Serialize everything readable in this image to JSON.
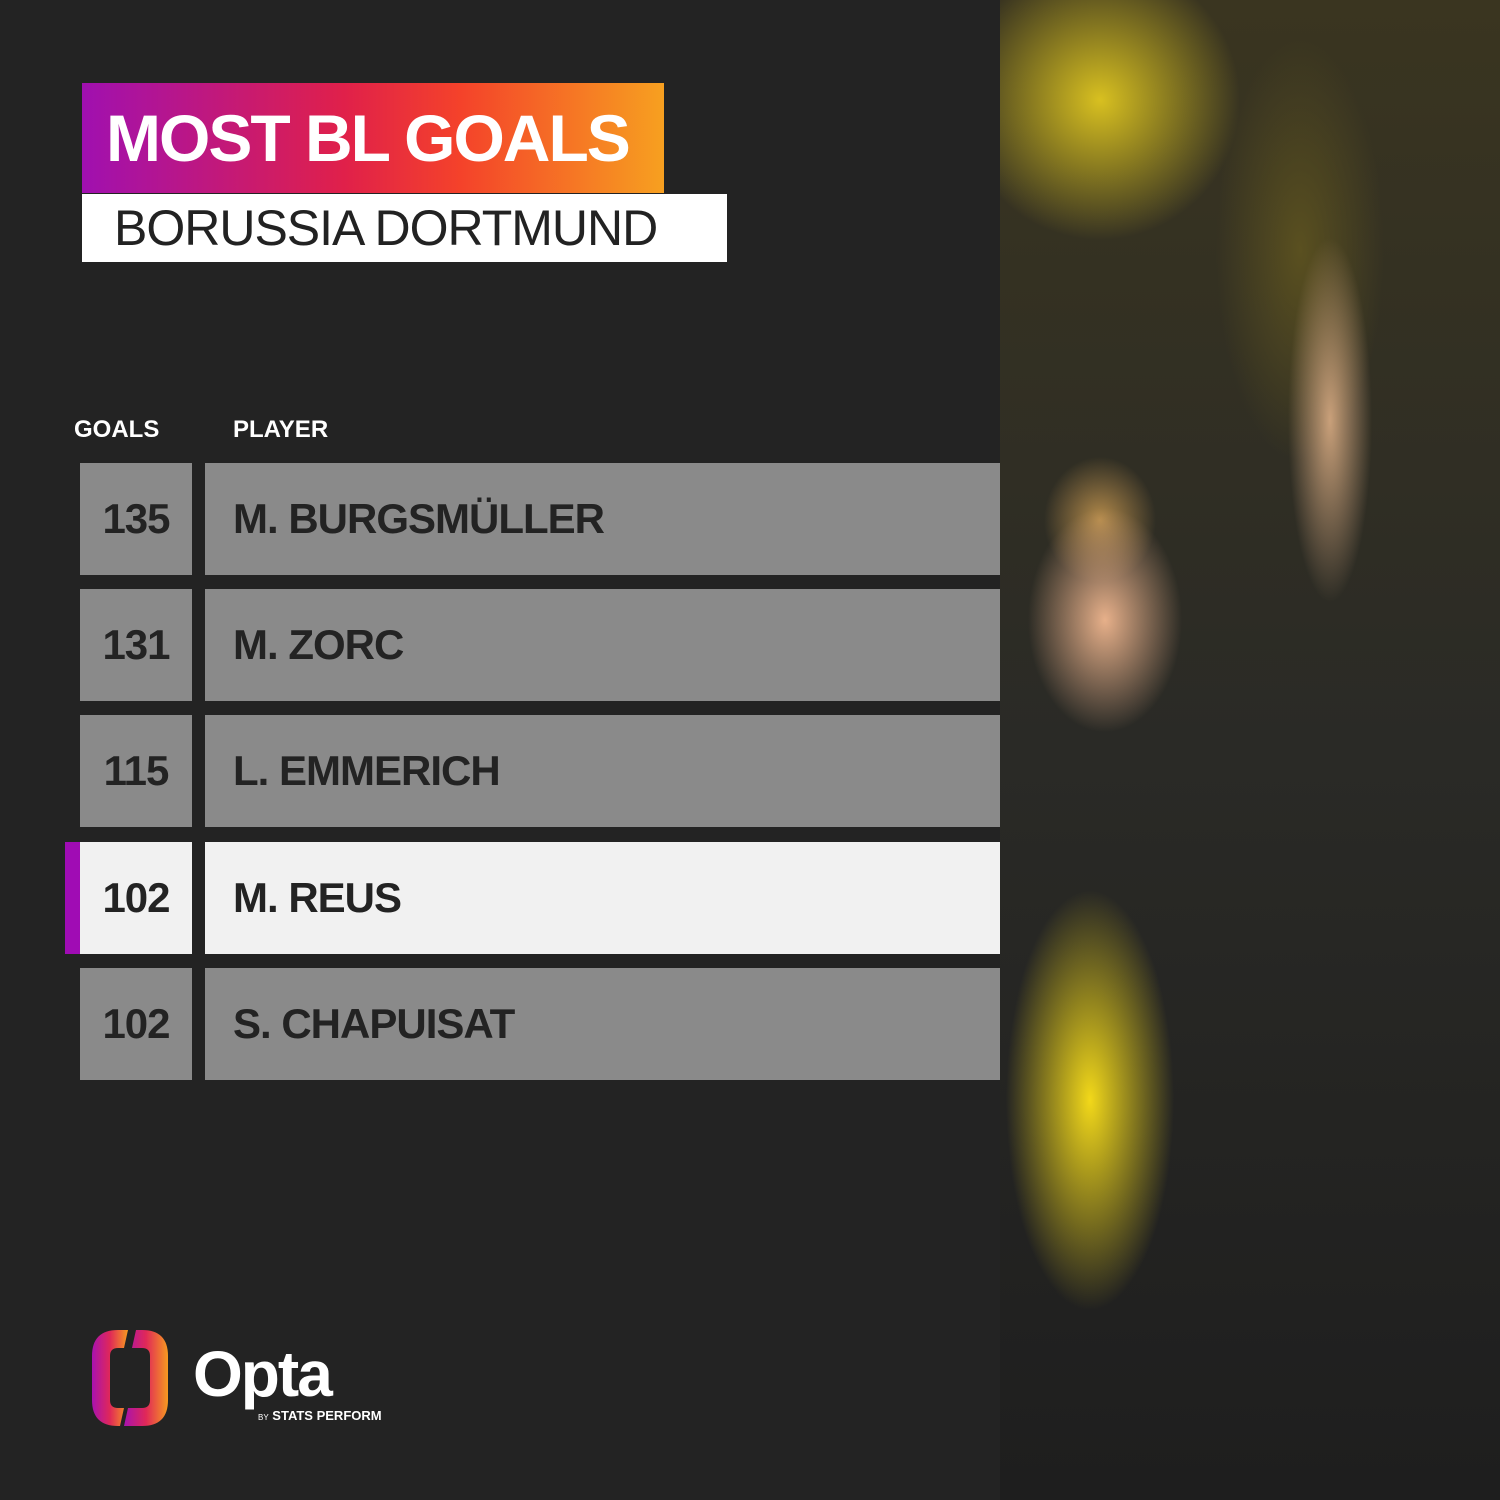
{
  "title": "MOST BL GOALS",
  "subtitle": "BORUSSIA DORTMUND",
  "columns": {
    "goals": "GOALS",
    "player": "PLAYER"
  },
  "rows": [
    {
      "goals": "135",
      "player": "M. BURGSMÜLLER",
      "highlight": false
    },
    {
      "goals": "131",
      "player": "M. ZORC",
      "highlight": false
    },
    {
      "goals": "115",
      "player": "L. EMMERICH",
      "highlight": false
    },
    {
      "goals": "102",
      "player": "M. REUS",
      "highlight": true
    },
    {
      "goals": "102",
      "player": "S. CHAPUISAT",
      "highlight": false
    }
  ],
  "brand": {
    "name": "Opta",
    "by": "BY",
    "tagline": "STATS PERFORM"
  },
  "colors": {
    "accent": "#a00cb4",
    "row": "#8a8a8a",
    "highlight_row": "#f1f1f1",
    "background": "#232323"
  }
}
